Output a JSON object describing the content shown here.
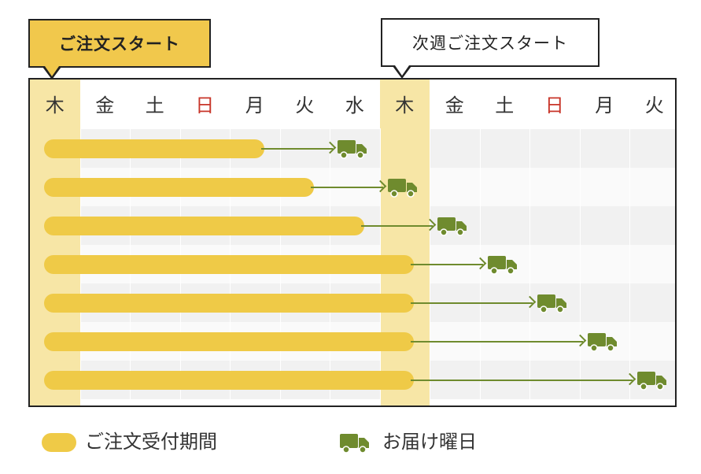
{
  "callouts": {
    "start": "ご注文スタート",
    "next": "次週ご注文スタート"
  },
  "days": [
    {
      "label": "木",
      "sunday": false,
      "highlight": true
    },
    {
      "label": "金",
      "sunday": false,
      "highlight": false
    },
    {
      "label": "土",
      "sunday": false,
      "highlight": false
    },
    {
      "label": "日",
      "sunday": true,
      "highlight": false
    },
    {
      "label": "月",
      "sunday": false,
      "highlight": false
    },
    {
      "label": "火",
      "sunday": false,
      "highlight": false
    },
    {
      "label": "水",
      "sunday": false,
      "highlight": false
    },
    {
      "label": "木",
      "sunday": false,
      "highlight": true
    },
    {
      "label": "金",
      "sunday": false,
      "highlight": false
    },
    {
      "label": "土",
      "sunday": false,
      "highlight": false
    },
    {
      "label": "日",
      "sunday": true,
      "highlight": false
    },
    {
      "label": "月",
      "sunday": false,
      "highlight": false
    },
    {
      "label": "火",
      "sunday": false,
      "highlight": false
    }
  ],
  "schedule": [
    {
      "order_end_day": 5,
      "delivery_day": 7
    },
    {
      "order_end_day": 6,
      "delivery_day": 8
    },
    {
      "order_end_day": 7,
      "delivery_day": 9
    },
    {
      "order_end_day": 8,
      "delivery_day": 10
    },
    {
      "order_end_day": 8,
      "delivery_day": 11
    },
    {
      "order_end_day": 8,
      "delivery_day": 12
    },
    {
      "order_end_day": 8,
      "delivery_day": 13
    }
  ],
  "legend": {
    "period": "ご注文受付期間",
    "delivery": "お届け曜日"
  },
  "colors": {
    "order_bar": "#efca47",
    "truck": "#6f8b2e",
    "sunday": "#c8362a",
    "highlight": "#f7e6a6"
  },
  "icons": {
    "delivery": "truck-icon"
  }
}
